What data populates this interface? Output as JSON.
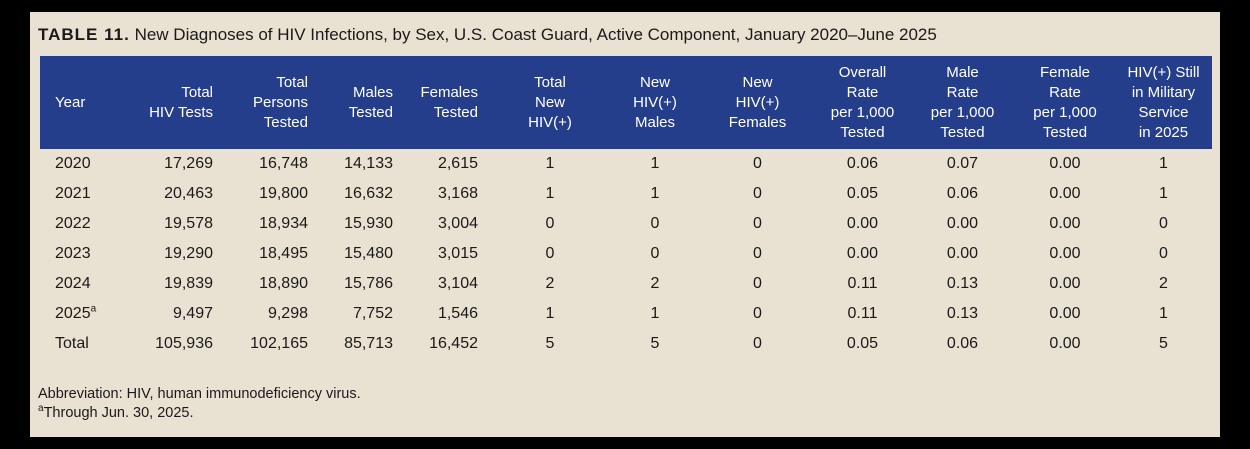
{
  "title": {
    "label": "TABLE 11.",
    "text": "New Diagnoses of HIV Infections, by Sex, U.S. Coast Guard, Active Component, January 2020–June 2025"
  },
  "colors": {
    "header_bg": "#253e8c",
    "header_text": "#ffffff",
    "panel_bg": "#e9e1d2",
    "frame": "#000000",
    "body_text": "#1a1a1a"
  },
  "table": {
    "columns": [
      {
        "label": "Year",
        "align": "left"
      },
      {
        "label": "Total\nHIV Tests",
        "align": "right"
      },
      {
        "label": "Total\nPersons\nTested",
        "align": "right"
      },
      {
        "label": "Males\nTested",
        "align": "right"
      },
      {
        "label": "Females\nTested",
        "align": "right"
      },
      {
        "label": "Total\nNew\nHIV(+)",
        "align": "center"
      },
      {
        "label": "New\nHIV(+)\nMales",
        "align": "center"
      },
      {
        "label": "New\nHIV(+)\nFemales",
        "align": "center"
      },
      {
        "label": "Overall\nRate\nper 1,000\nTested",
        "align": "center"
      },
      {
        "label": "Male\nRate\nper 1,000\nTested",
        "align": "center"
      },
      {
        "label": "Female\nRate\nper 1,000\nTested",
        "align": "center"
      },
      {
        "label": "HIV(+) Still\nin Military\nService\nin 2025",
        "align": "center"
      }
    ],
    "rows": [
      {
        "year": "2020",
        "sup": "",
        "cells": [
          "17,269",
          "16,748",
          "14,133",
          "2,615",
          "1",
          "1",
          "0",
          "0.06",
          "0.07",
          "0.00",
          "1"
        ]
      },
      {
        "year": "2021",
        "sup": "",
        "cells": [
          "20,463",
          "19,800",
          "16,632",
          "3,168",
          "1",
          "1",
          "0",
          "0.05",
          "0.06",
          "0.00",
          "1"
        ]
      },
      {
        "year": "2022",
        "sup": "",
        "cells": [
          "19,578",
          "18,934",
          "15,930",
          "3,004",
          "0",
          "0",
          "0",
          "0.00",
          "0.00",
          "0.00",
          "0"
        ]
      },
      {
        "year": "2023",
        "sup": "",
        "cells": [
          "19,290",
          "18,495",
          "15,480",
          "3,015",
          "0",
          "0",
          "0",
          "0.00",
          "0.00",
          "0.00",
          "0"
        ]
      },
      {
        "year": "2024",
        "sup": "",
        "cells": [
          "19,839",
          "18,890",
          "15,786",
          "3,104",
          "2",
          "2",
          "0",
          "0.11",
          "0.13",
          "0.00",
          "2"
        ]
      },
      {
        "year": "2025",
        "sup": "a",
        "cells": [
          "9,497",
          "9,298",
          "7,752",
          "1,546",
          "1",
          "1",
          "0",
          "0.11",
          "0.13",
          "0.00",
          "1"
        ]
      },
      {
        "year": "Total",
        "sup": "",
        "cells": [
          "105,936",
          "102,165",
          "85,713",
          "16,452",
          "5",
          "5",
          "0",
          "0.05",
          "0.06",
          "0.00",
          "5"
        ]
      }
    ]
  },
  "footnotes": {
    "abbreviation": "Abbreviation: HIV, human immunodeficiency virus.",
    "note_a_marker": "a",
    "note_a_text": "Through Jun. 30, 2025."
  }
}
